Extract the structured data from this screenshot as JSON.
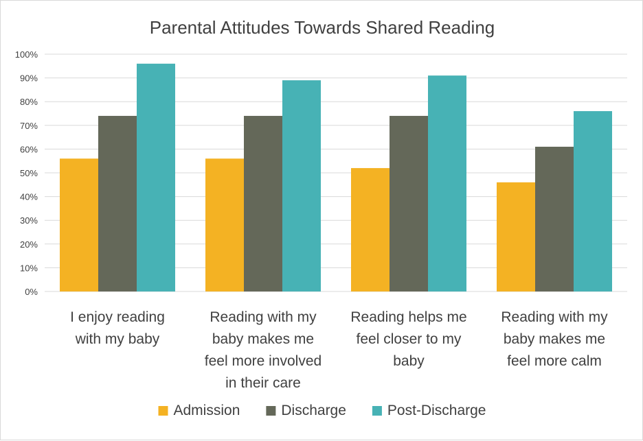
{
  "chart_data": {
    "type": "bar",
    "title": "Parental Attitudes Towards Shared Reading",
    "categories": [
      [
        "I enjoy reading",
        "with my baby"
      ],
      [
        "Reading with my",
        "baby makes me",
        "feel more involved",
        "in their care"
      ],
      [
        "Reading helps me",
        "feel closer to my",
        "baby"
      ],
      [
        "Reading with my",
        "baby makes me",
        "feel more calm"
      ]
    ],
    "series": [
      {
        "name": "Admission",
        "color": "#F4B223",
        "values": [
          56,
          56,
          52,
          46
        ]
      },
      {
        "name": "Discharge",
        "color": "#646859",
        "values": [
          74,
          74,
          74,
          61
        ]
      },
      {
        "name": "Post-Discharge",
        "color": "#47B2B5",
        "values": [
          96,
          89,
          91,
          76
        ]
      }
    ],
    "yticks": [
      "0%",
      "10%",
      "20%",
      "30%",
      "40%",
      "50%",
      "60%",
      "70%",
      "80%",
      "90%",
      "100%"
    ],
    "ylim": [
      0,
      100
    ],
    "grid": true,
    "legend_position": "bottom"
  }
}
